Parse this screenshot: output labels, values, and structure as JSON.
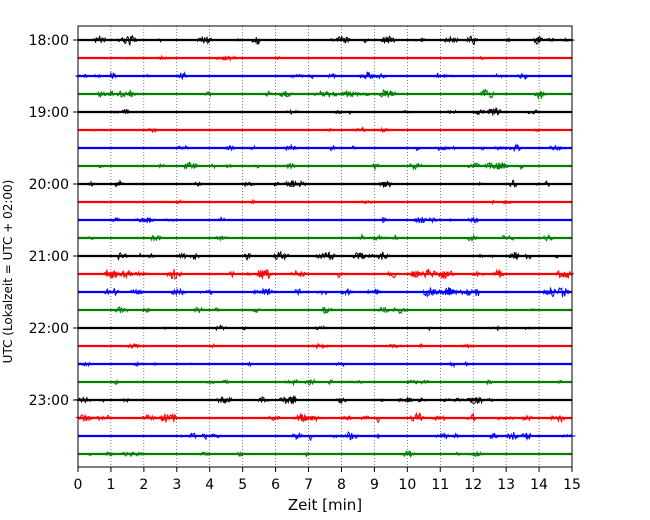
{
  "chart_data": {
    "type": "line",
    "title": "",
    "xlabel": "Zeit  [min]",
    "ylabel": "UTC (Lokalzeit = UTC + 02:00)",
    "xlim": [
      0,
      15
    ],
    "x_ticks": [
      "0",
      "1",
      "2",
      "3",
      "4",
      "5",
      "6",
      "7",
      "8",
      "9",
      "10",
      "11",
      "12",
      "13",
      "14",
      "15"
    ],
    "y_ticks": [
      "18:00",
      "19:00",
      "20:00",
      "21:00",
      "22:00",
      "23:00"
    ],
    "grid": "vertical dotted",
    "trace_colors": [
      "#000000",
      "#ff0000",
      "#0000ff",
      "#008000"
    ],
    "traces": [
      {
        "time": "18:00",
        "color": "#000000",
        "activity": 0.85
      },
      {
        "time": "18:15",
        "color": "#ff0000",
        "activity": 0.2
      },
      {
        "time": "18:30",
        "color": "#0000ff",
        "activity": 0.6
      },
      {
        "time": "18:45",
        "color": "#008000",
        "activity": 0.75
      },
      {
        "time": "19:00",
        "color": "#000000",
        "activity": 0.5
      },
      {
        "time": "19:15",
        "color": "#ff0000",
        "activity": 0.25
      },
      {
        "time": "19:30",
        "color": "#0000ff",
        "activity": 0.5
      },
      {
        "time": "19:45",
        "color": "#008000",
        "activity": 0.55
      },
      {
        "time": "20:00",
        "color": "#000000",
        "activity": 0.55
      },
      {
        "time": "20:15",
        "color": "#ff0000",
        "activity": 0.2
      },
      {
        "time": "20:30",
        "color": "#0000ff",
        "activity": 0.4
      },
      {
        "time": "20:45",
        "color": "#008000",
        "activity": 0.45
      },
      {
        "time": "21:00",
        "color": "#000000",
        "activity": 0.8
      },
      {
        "time": "21:15",
        "color": "#ff0000",
        "activity": 0.9
      },
      {
        "time": "21:30",
        "color": "#0000ff",
        "activity": 0.95
      },
      {
        "time": "21:45",
        "color": "#008000",
        "activity": 0.45
      },
      {
        "time": "22:00",
        "color": "#000000",
        "activity": 0.3
      },
      {
        "time": "22:15",
        "color": "#ff0000",
        "activity": 0.25
      },
      {
        "time": "22:30",
        "color": "#0000ff",
        "activity": 0.3
      },
      {
        "time": "22:45",
        "color": "#008000",
        "activity": 0.45
      },
      {
        "time": "23:00",
        "color": "#000000",
        "activity": 0.8
      },
      {
        "time": "23:15",
        "color": "#ff0000",
        "activity": 0.85
      },
      {
        "time": "23:30",
        "color": "#0000ff",
        "activity": 0.65
      },
      {
        "time": "23:45",
        "color": "#008000",
        "activity": 0.45
      }
    ]
  }
}
